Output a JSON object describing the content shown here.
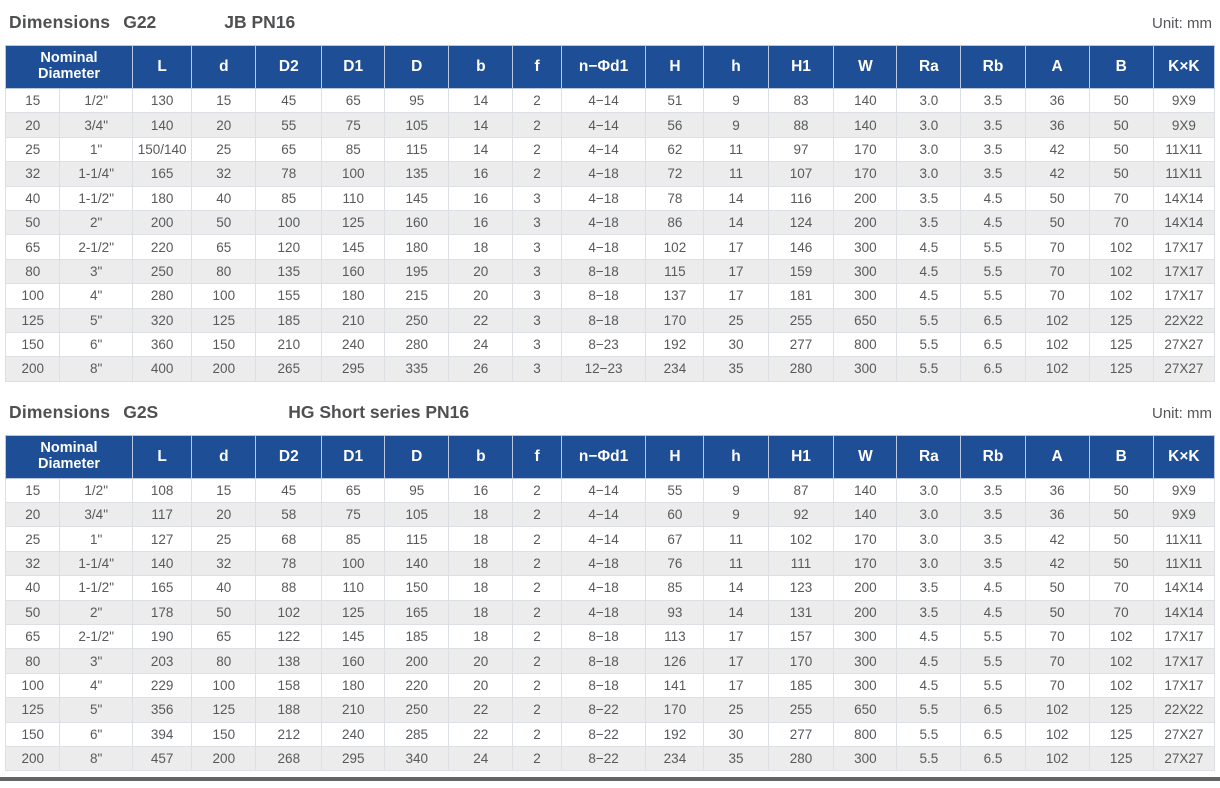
{
  "columns": [
    {
      "key": "nominal-diameter",
      "label": "Nominal Diameter",
      "colspan": 2
    },
    {
      "key": "L",
      "label": "L"
    },
    {
      "key": "d",
      "label": "d"
    },
    {
      "key": "D2",
      "label": "D2"
    },
    {
      "key": "D1",
      "label": "D1"
    },
    {
      "key": "D",
      "label": "D"
    },
    {
      "key": "b",
      "label": "b"
    },
    {
      "key": "f",
      "label": "f"
    },
    {
      "key": "n-phi-d1",
      "label": "n−Φd1"
    },
    {
      "key": "H",
      "label": "H"
    },
    {
      "key": "h",
      "label": "h"
    },
    {
      "key": "H1",
      "label": "H1"
    },
    {
      "key": "W",
      "label": "W"
    },
    {
      "key": "Ra",
      "label": "Ra"
    },
    {
      "key": "Rb",
      "label": "Rb"
    },
    {
      "key": "A",
      "label": "A"
    },
    {
      "key": "B",
      "label": "B"
    },
    {
      "key": "KxK",
      "label": "K×K"
    }
  ],
  "tables": [
    {
      "title": "Dimensions",
      "model": "G22",
      "series": "JB PN16",
      "unit": "Unit: mm",
      "rows": [
        [
          "15",
          "1/2\"",
          "130",
          "15",
          "45",
          "65",
          "95",
          "14",
          "2",
          "4−14",
          "51",
          "9",
          "83",
          "140",
          "3.0",
          "3.5",
          "36",
          "50",
          "9X9"
        ],
        [
          "20",
          "3/4\"",
          "140",
          "20",
          "55",
          "75",
          "105",
          "14",
          "2",
          "4−14",
          "56",
          "9",
          "88",
          "140",
          "3.0",
          "3.5",
          "36",
          "50",
          "9X9"
        ],
        [
          "25",
          "1\"",
          "150/140",
          "25",
          "65",
          "85",
          "115",
          "14",
          "2",
          "4−14",
          "62",
          "11",
          "97",
          "170",
          "3.0",
          "3.5",
          "42",
          "50",
          "11X11"
        ],
        [
          "32",
          "1-1/4\"",
          "165",
          "32",
          "78",
          "100",
          "135",
          "16",
          "2",
          "4−18",
          "72",
          "11",
          "107",
          "170",
          "3.0",
          "3.5",
          "42",
          "50",
          "11X11"
        ],
        [
          "40",
          "1-1/2\"",
          "180",
          "40",
          "85",
          "110",
          "145",
          "16",
          "3",
          "4−18",
          "78",
          "14",
          "116",
          "200",
          "3.5",
          "4.5",
          "50",
          "70",
          "14X14"
        ],
        [
          "50",
          "2\"",
          "200",
          "50",
          "100",
          "125",
          "160",
          "16",
          "3",
          "4−18",
          "86",
          "14",
          "124",
          "200",
          "3.5",
          "4.5",
          "50",
          "70",
          "14X14"
        ],
        [
          "65",
          "2-1/2\"",
          "220",
          "65",
          "120",
          "145",
          "180",
          "18",
          "3",
          "4−18",
          "102",
          "17",
          "146",
          "300",
          "4.5",
          "5.5",
          "70",
          "102",
          "17X17"
        ],
        [
          "80",
          "3\"",
          "250",
          "80",
          "135",
          "160",
          "195",
          "20",
          "3",
          "8−18",
          "115",
          "17",
          "159",
          "300",
          "4.5",
          "5.5",
          "70",
          "102",
          "17X17"
        ],
        [
          "100",
          "4\"",
          "280",
          "100",
          "155",
          "180",
          "215",
          "20",
          "3",
          "8−18",
          "137",
          "17",
          "181",
          "300",
          "4.5",
          "5.5",
          "70",
          "102",
          "17X17"
        ],
        [
          "125",
          "5\"",
          "320",
          "125",
          "185",
          "210",
          "250",
          "22",
          "3",
          "8−18",
          "170",
          "25",
          "255",
          "650",
          "5.5",
          "6.5",
          "102",
          "125",
          "22X22"
        ],
        [
          "150",
          "6\"",
          "360",
          "150",
          "210",
          "240",
          "280",
          "24",
          "3",
          "8−23",
          "192",
          "30",
          "277",
          "800",
          "5.5",
          "6.5",
          "102",
          "125",
          "27X27"
        ],
        [
          "200",
          "8\"",
          "400",
          "200",
          "265",
          "295",
          "335",
          "26",
          "3",
          "12−23",
          "234",
          "35",
          "280",
          "300",
          "5.5",
          "6.5",
          "102",
          "125",
          "27X27"
        ]
      ]
    },
    {
      "title": "Dimensions",
      "model": "G2S",
      "series": "HG Short series PN16",
      "unit": "Unit: mm",
      "rows": [
        [
          "15",
          "1/2\"",
          "108",
          "15",
          "45",
          "65",
          "95",
          "16",
          "2",
          "4−14",
          "55",
          "9",
          "87",
          "140",
          "3.0",
          "3.5",
          "36",
          "50",
          "9X9"
        ],
        [
          "20",
          "3/4\"",
          "117",
          "20",
          "58",
          "75",
          "105",
          "18",
          "2",
          "4−14",
          "60",
          "9",
          "92",
          "140",
          "3.0",
          "3.5",
          "36",
          "50",
          "9X9"
        ],
        [
          "25",
          "1\"",
          "127",
          "25",
          "68",
          "85",
          "115",
          "18",
          "2",
          "4−14",
          "67",
          "11",
          "102",
          "170",
          "3.0",
          "3.5",
          "42",
          "50",
          "11X11"
        ],
        [
          "32",
          "1-1/4\"",
          "140",
          "32",
          "78",
          "100",
          "140",
          "18",
          "2",
          "4−18",
          "76",
          "11",
          "111",
          "170",
          "3.0",
          "3.5",
          "42",
          "50",
          "11X11"
        ],
        [
          "40",
          "1-1/2\"",
          "165",
          "40",
          "88",
          "110",
          "150",
          "18",
          "2",
          "4−18",
          "85",
          "14",
          "123",
          "200",
          "3.5",
          "4.5",
          "50",
          "70",
          "14X14"
        ],
        [
          "50",
          "2\"",
          "178",
          "50",
          "102",
          "125",
          "165",
          "18",
          "2",
          "4−18",
          "93",
          "14",
          "131",
          "200",
          "3.5",
          "4.5",
          "50",
          "70",
          "14X14"
        ],
        [
          "65",
          "2-1/2\"",
          "190",
          "65",
          "122",
          "145",
          "185",
          "18",
          "2",
          "8−18",
          "113",
          "17",
          "157",
          "300",
          "4.5",
          "5.5",
          "70",
          "102",
          "17X17"
        ],
        [
          "80",
          "3\"",
          "203",
          "80",
          "138",
          "160",
          "200",
          "20",
          "2",
          "8−18",
          "126",
          "17",
          "170",
          "300",
          "4.5",
          "5.5",
          "70",
          "102",
          "17X17"
        ],
        [
          "100",
          "4\"",
          "229",
          "100",
          "158",
          "180",
          "220",
          "20",
          "2",
          "8−18",
          "141",
          "17",
          "185",
          "300",
          "4.5",
          "5.5",
          "70",
          "102",
          "17X17"
        ],
        [
          "125",
          "5\"",
          "356",
          "125",
          "188",
          "210",
          "250",
          "22",
          "2",
          "8−22",
          "170",
          "25",
          "255",
          "650",
          "5.5",
          "6.5",
          "102",
          "125",
          "22X22"
        ],
        [
          "150",
          "6\"",
          "394",
          "150",
          "212",
          "240",
          "285",
          "22",
          "2",
          "8−22",
          "192",
          "30",
          "277",
          "800",
          "5.5",
          "6.5",
          "102",
          "125",
          "27X27"
        ],
        [
          "200",
          "8\"",
          "457",
          "200",
          "268",
          "295",
          "340",
          "24",
          "2",
          "8−22",
          "234",
          "35",
          "280",
          "300",
          "5.5",
          "6.5",
          "102",
          "125",
          "27X27"
        ]
      ]
    }
  ],
  "colors": {
    "header_bg": "#1e4e96",
    "header_text": "#ffffff",
    "row_alt_bg": "#ececec",
    "body_text": "#58595b",
    "title_text": "#4f5052"
  }
}
